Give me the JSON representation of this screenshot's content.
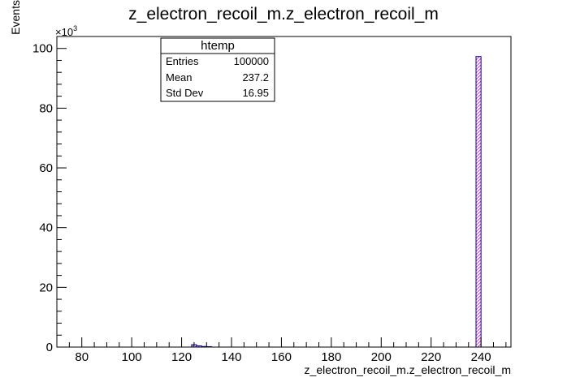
{
  "chart_data": {
    "type": "bar",
    "title": "z_electron_recoil_m.z_electron_recoil_m",
    "xlabel": "z_electron_recoil_m.z_electron_recoil_m",
    "ylabel": "Events",
    "y_exponent_label": "×10",
    "y_exponent_power": "3",
    "xlim": [
      70,
      252
    ],
    "ylim": [
      0,
      104000
    ],
    "x_ticks": [
      80,
      100,
      120,
      140,
      160,
      180,
      200,
      220,
      240
    ],
    "y_ticks": [
      0,
      20,
      40,
      60,
      80,
      100
    ],
    "y_tick_scale": 1000,
    "bin_width": 2,
    "bins": [
      {
        "x_low": 124,
        "value": 800
      },
      {
        "x_low": 126,
        "value": 400
      },
      {
        "x_low": 128,
        "value": 200
      },
      {
        "x_low": 130,
        "value": 150
      },
      {
        "x_low": 238,
        "value": 97300
      }
    ],
    "grid": false,
    "line_color": "#000099",
    "hatch_color": "#cc33cc",
    "stats_box": {
      "title": "htemp",
      "rows": [
        {
          "label": "Entries",
          "value": "100000"
        },
        {
          "label": "Mean",
          "value": "237.2"
        },
        {
          "label": "Std Dev",
          "value": "16.95"
        }
      ]
    }
  }
}
